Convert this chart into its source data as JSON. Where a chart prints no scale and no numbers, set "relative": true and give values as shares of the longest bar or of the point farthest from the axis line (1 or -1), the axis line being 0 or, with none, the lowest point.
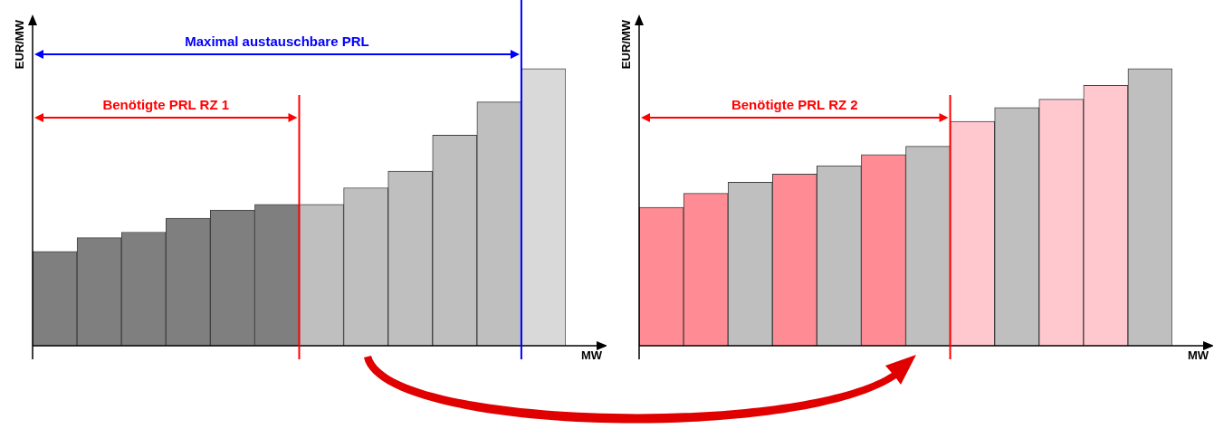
{
  "chart_data": [
    {
      "type": "bar",
      "relative": true,
      "ylabel": "EUR/MW",
      "xlabel": "MW",
      "legend": false,
      "categories": [
        null,
        null,
        null,
        null,
        null,
        null,
        null,
        null,
        null,
        null,
        null,
        null
      ],
      "values": [
        0.34,
        0.39,
        0.41,
        0.46,
        0.49,
        0.51,
        0.51,
        0.57,
        0.63,
        0.76,
        0.88,
        1
      ],
      "colors": [
        "#7f7f7f",
        "#7f7f7f",
        "#7f7f7f",
        "#7f7f7f",
        "#7f7f7f",
        "#7f7f7f",
        "#bfbfbf",
        "#bfbfbf",
        "#bfbfbf",
        "#bfbfbf",
        "#bfbfbf",
        "#d9d9d9"
      ],
      "annotations": [
        "Benötigte PRL RZ 1",
        "Maximal austauschbare PRL"
      ]
    },
    {
      "type": "bar",
      "relative": true,
      "ylabel": "EUR/MW",
      "xlabel": "MW",
      "legend": false,
      "categories": [
        null,
        null,
        null,
        null,
        null,
        null,
        null,
        null,
        null,
        null,
        null,
        null
      ],
      "values": [
        0.5,
        0.55,
        0.59,
        0.62,
        0.65,
        0.69,
        0.72,
        0.81,
        0.86,
        0.89,
        0.94,
        1
      ],
      "colors": [
        "#ff8b94",
        "#ff8b94",
        "#bfbfbf",
        "#ff8b94",
        "#bfbfbf",
        "#ff8b94",
        "#bfbfbf",
        "#ffc7ce",
        "#bfbfbf",
        "#ffc7ce",
        "#ffc7ce",
        "#bfbfbf"
      ],
      "annotations": [
        "Benötigte PRL RZ 2"
      ]
    }
  ]
}
